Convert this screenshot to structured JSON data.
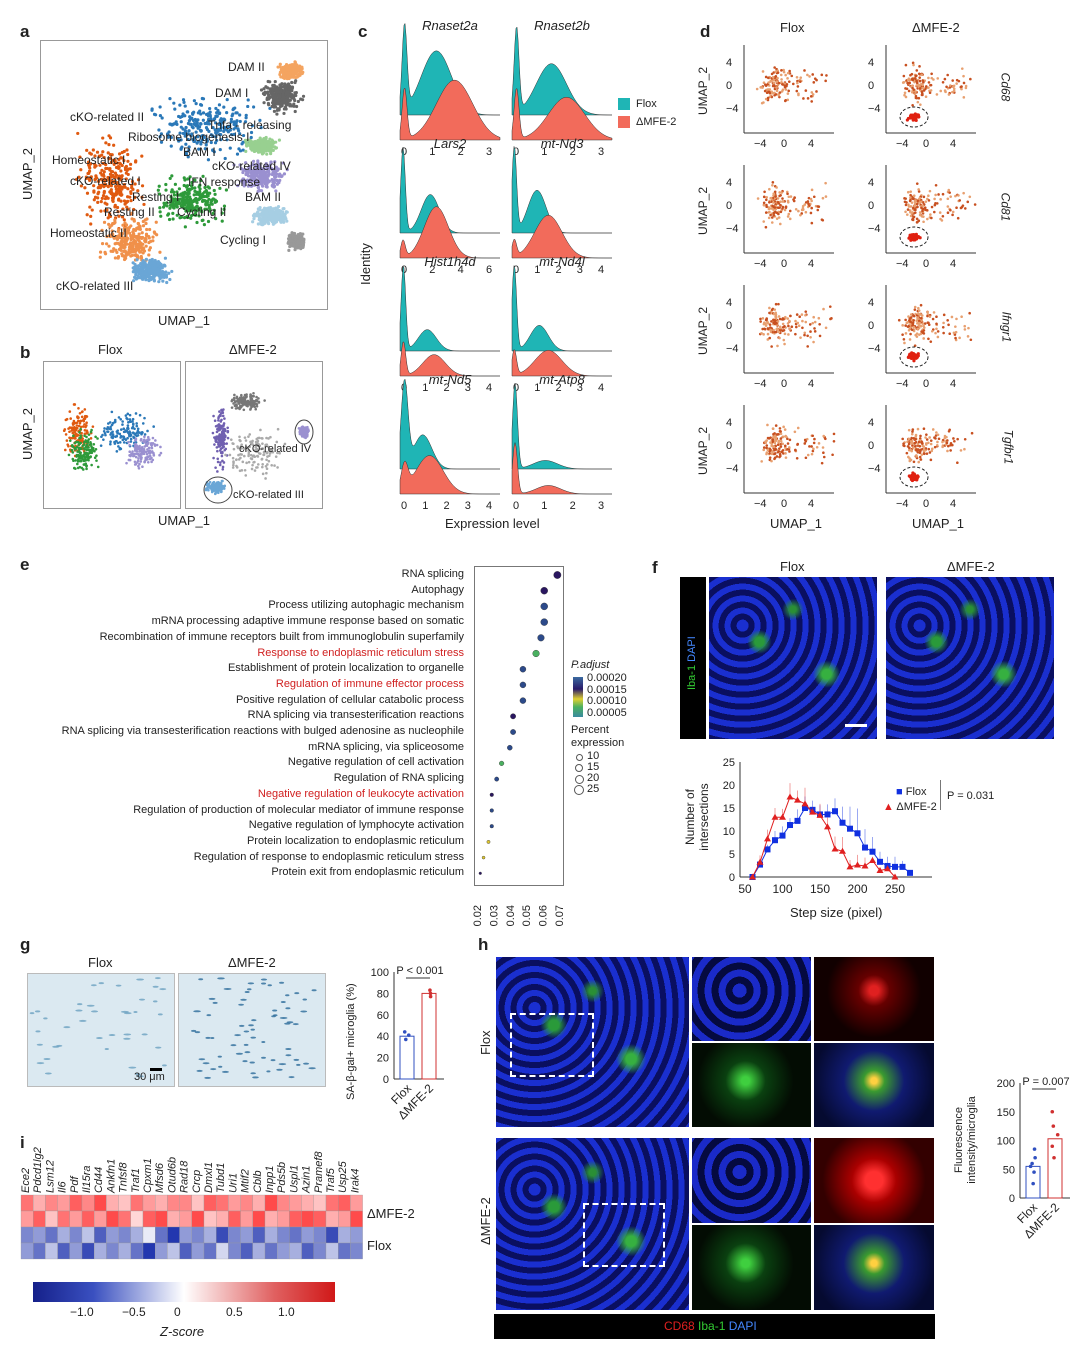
{
  "panels": {
    "a": "a",
    "b": "b",
    "c": "c",
    "d": "d",
    "e": "e",
    "f": "f",
    "g": "g",
    "h": "h",
    "i": "i"
  },
  "a": {
    "xlabel": "UMAP_1",
    "ylabel": "UMAP_2",
    "clusters": [
      "DAM II",
      "DAM I",
      "cKO-related II",
      "Tnfa - releasing",
      "Ribosome biogenesis I",
      "BAM I",
      "Homeostatic I",
      "cKO-related IV",
      "cKO-related I",
      "IFN response",
      "Resting I",
      "BAM II",
      "Resting II",
      "Cycling II",
      "Homeostatic II",
      "Cycling I",
      "cKO-related III"
    ]
  },
  "b": {
    "titles": [
      "Flox",
      "ΔMFE-2"
    ],
    "xlabel": "UMAP_1",
    "ylabel": "UMAP_2",
    "annotations": [
      "cKO-related IV",
      "cKO-related III"
    ]
  },
  "c": {
    "ylabel": "Identity",
    "xlabel": "Expression level",
    "legend": [
      "Flox",
      "ΔMFE-2"
    ],
    "colors": {
      "flox": "#1fb5b5",
      "mfe": "#f26b5b"
    },
    "genes": [
      {
        "name": "Rnaset2a",
        "ticks": [
          "0",
          "1",
          "2",
          "3"
        ],
        "flox": [
          [
            0.15,
            0.08,
            1
          ],
          [
            1.2,
            0.5,
            0.75
          ]
        ],
        "mfe": [
          [
            0.15,
            0.08,
            0.6
          ],
          [
            1.8,
            0.6,
            0.7
          ]
        ]
      },
      {
        "name": "Rnaset2b",
        "ticks": [
          "0",
          "1",
          "2",
          "3"
        ],
        "flox": [
          [
            0.15,
            0.08,
            1
          ],
          [
            1.3,
            0.5,
            0.6
          ]
        ],
        "mfe": [
          [
            0.15,
            0.08,
            0.6
          ],
          [
            1.8,
            0.6,
            0.5
          ]
        ]
      },
      {
        "name": "Lars2",
        "ticks": [
          "0",
          "2",
          "4",
          "6"
        ],
        "flox": [
          [
            0.2,
            0.15,
            1
          ],
          [
            2,
            0.6,
            0.45
          ]
        ],
        "mfe": [
          [
            0.2,
            0.15,
            0.2
          ],
          [
            2.4,
            0.8,
            0.6
          ]
        ]
      },
      {
        "name": "mt-Nd3",
        "ticks": [
          "0",
          "1",
          "2",
          "3",
          "4"
        ],
        "flox": [
          [
            0.1,
            0.1,
            1
          ],
          [
            1.1,
            0.4,
            0.5
          ]
        ],
        "mfe": [
          [
            0.1,
            0.1,
            0.2
          ],
          [
            1.6,
            0.6,
            0.5
          ]
        ]
      },
      {
        "name": "Hist1h4d",
        "ticks": [
          "0",
          "1",
          "2",
          "3",
          "4"
        ],
        "flox": [
          [
            0.15,
            0.1,
            1
          ],
          [
            1.2,
            0.4,
            0.25
          ]
        ],
        "mfe": [
          [
            0.15,
            0.1,
            0.4
          ],
          [
            1.5,
            0.5,
            0.25
          ]
        ]
      },
      {
        "name": "mt-Nd4l",
        "ticks": [
          "0",
          "1",
          "2",
          "3",
          "4"
        ],
        "flox": [
          [
            0.1,
            0.1,
            1
          ],
          [
            1.2,
            0.4,
            0.3
          ]
        ],
        "mfe": [
          [
            0.1,
            0.1,
            0.3
          ],
          [
            1.6,
            0.6,
            0.3
          ]
        ]
      },
      {
        "name": "mt-Nd5",
        "ticks": [
          "0",
          "1",
          "2",
          "3",
          "4"
        ],
        "flox": [
          [
            0.2,
            0.15,
            1
          ],
          [
            1.0,
            0.4,
            0.4
          ]
        ],
        "mfe": [
          [
            0.2,
            0.15,
            0.3
          ],
          [
            1.3,
            0.6,
            0.45
          ]
        ]
      },
      {
        "name": "mt-Atp8",
        "ticks": [
          "0",
          "1",
          "2",
          "3"
        ],
        "flox": [
          [
            0.1,
            0.08,
            1
          ],
          [
            1.1,
            0.4,
            0.1
          ]
        ],
        "mfe": [
          [
            0.1,
            0.08,
            0.6
          ],
          [
            1.2,
            0.4,
            0.1
          ]
        ]
      }
    ]
  },
  "d": {
    "titles": [
      "Flox",
      "ΔMFE-2"
    ],
    "genes": [
      "Cd68",
      "Cd81",
      "Ifngr1",
      "Tgfbr1"
    ],
    "xlabel": "UMAP_1",
    "ylabel": "UMAP_2",
    "yticks": [
      "4",
      "0",
      "−4"
    ],
    "xticks": [
      "−4",
      "0",
      "4"
    ]
  },
  "chart_data": [
    {
      "type": "scatter",
      "title": "GO enrichment",
      "terms": [
        "RNA splicing",
        "Autophagy",
        "Process utilizing autophagic mechanism",
        "mRNA processing adaptive immune response based on somatic",
        "Recombination of immune receptors built from immunoglobulin superfamily",
        "Response to endoplasmic reticulum stress",
        "Establishment of protein localization to organelle",
        "Regulation of immune effector process",
        "Positive regulation of cellular catabolic process",
        "RNA splicing via transesterification reactions",
        "RNA splicing via transesterification reactions with bulged adenosine as nucleophile",
        "mRNA splicing, via spliceosome",
        "Negative regulation of cell activation",
        "Regulation of RNA splicing",
        "Negative regulation of leukocyte activation",
        "Regulation of production of molecular mediator of immune response",
        "Negative regulation of lymphocyte activation",
        "Protein localization to endoplasmic reticulum",
        "Regulation of response to endoplasmic reticulum stress",
        "Protein exit from endoplasmic reticulum"
      ],
      "highlighted": [
        5,
        7,
        14
      ],
      "x": [
        0.069,
        0.061,
        0.061,
        0.061,
        0.059,
        0.056,
        0.048,
        0.048,
        0.048,
        0.042,
        0.042,
        0.04,
        0.035,
        0.032,
        0.029,
        0.029,
        0.029,
        0.027,
        0.024,
        0.022
      ],
      "padj": [
        0.00015,
        0.00015,
        0.00018,
        0.00018,
        0.0002,
        0.0001,
        0.00018,
        0.00018,
        0.00018,
        0.00015,
        0.00018,
        0.00018,
        0.0001,
        0.00018,
        0.00015,
        0.00018,
        0.00018,
        0.00012,
        0.00012,
        0.00016
      ],
      "size": [
        22,
        21,
        21,
        21,
        20,
        20,
        18,
        18,
        18,
        16,
        16,
        15,
        14,
        13,
        11,
        11,
        11,
        10,
        9,
        8
      ],
      "xticks": [
        "0.02",
        "0.03",
        "0.04",
        "0.05",
        "0.06",
        "0.07"
      ],
      "xlim": [
        0.02,
        0.07
      ],
      "legend_title": "P.adjust",
      "legend_values": [
        "0.00020",
        "0.00015",
        "0.00010",
        "0.00005"
      ],
      "size_title": "Percent expression",
      "size_values": [
        "10",
        "15",
        "20",
        "25"
      ]
    },
    {
      "type": "line",
      "xlabel": "Step size (pixel)",
      "ylabel": "Number of intersections",
      "ylim": [
        0,
        25
      ],
      "xlim": [
        50,
        300
      ],
      "xticks": [
        "50",
        "100",
        "150",
        "200",
        "250"
      ],
      "yticks": [
        "0",
        "5",
        "10",
        "15",
        "20",
        "25"
      ],
      "pvalue": "P = 0.031",
      "series": [
        {
          "name": "Flox",
          "color": "#1030e0",
          "x": [
            60,
            70,
            80,
            90,
            100,
            110,
            120,
            130,
            140,
            150,
            160,
            170,
            180,
            190,
            200,
            210,
            220,
            230,
            240,
            250,
            260,
            270
          ],
          "y": [
            0,
            2.7,
            6,
            8,
            9,
            11.3,
            12.2,
            15,
            14.6,
            13.6,
            13.6,
            14.3,
            11.8,
            10.5,
            9.5,
            6.4,
            5.5,
            3.3,
            2.4,
            2.2,
            2.2,
            0.9
          ],
          "err": [
            0,
            1,
            1,
            2,
            2,
            1.5,
            2.5,
            2.5,
            2,
            2,
            2.2,
            2.8,
            3.5,
            4.8,
            5.4,
            4,
            3.2,
            2.2,
            2,
            2.2,
            1.3,
            0
          ]
        },
        {
          "name": "ΔMFE-2",
          "color": "#e02020",
          "x": [
            60,
            70,
            80,
            90,
            100,
            110,
            120,
            130,
            140,
            150,
            160,
            170,
            180,
            190,
            200,
            210,
            220,
            230,
            240,
            250
          ],
          "y": [
            0,
            3.2,
            8.3,
            13,
            13,
            17.4,
            16.7,
            15.9,
            14.1,
            13.4,
            10.9,
            6.1,
            5.6,
            2.2,
            2.6,
            2.4,
            3.6,
            1.4,
            1.8,
            0
          ],
          "err": [
            0,
            1.5,
            2,
            2,
            1.8,
            3,
            2.1,
            3.5,
            1,
            2.5,
            2,
            2.7,
            3.1,
            1.5,
            2.2,
            1.8,
            0.8,
            0.6,
            0.5,
            0
          ]
        }
      ]
    },
    {
      "type": "bar",
      "ylabel": "SA-β-gal+ microglia (%)",
      "categories": [
        "Flox",
        "ΔMFE-2"
      ],
      "values": [
        40,
        80
      ],
      "ylim": [
        0,
        100
      ],
      "yticks": [
        "0",
        "20",
        "40",
        "60",
        "80",
        "100"
      ],
      "pvalue": "P < 0.001",
      "points": [
        [
          37,
          41,
          44
        ],
        [
          77,
          80,
          83
        ]
      ]
    },
    {
      "type": "bar",
      "ylabel": "Fluorescence intensity/microglia",
      "categories": [
        "Flox",
        "ΔMFE-2"
      ],
      "values": [
        55,
        103
      ],
      "ylim": [
        0,
        200
      ],
      "yticks": [
        "0",
        "50",
        "100",
        "150",
        "200"
      ],
      "pvalue": "P = 0.007",
      "points": [
        [
          25,
          45,
          55,
          60,
          70,
          85
        ],
        [
          70,
          90,
          110,
          125,
          150
        ]
      ]
    },
    {
      "type": "heatmap",
      "genes": [
        "Ece2",
        "Pdcd1lg2",
        "Lsm12",
        "Il6",
        "Pdf",
        "Il15ra",
        "Cd44",
        "Ankfn1",
        "Tnfsf8",
        "Traf1",
        "Cpxm1",
        "Mfsd6",
        "Otud6b",
        "Rad18",
        "Crcp",
        "Dmxl1",
        "Tubd1",
        "Uri1",
        "Mtif2",
        "Cblb",
        "Inpp1",
        "Pds5b",
        "Uspl1",
        "Azin1",
        "Pramef8",
        "Traf5",
        "Usp25",
        "Irak4"
      ],
      "rows": [
        "ΔMFE-2",
        "ΔMFE-2",
        "Flox",
        "Flox"
      ],
      "row_labels": [
        "ΔMFE-2",
        "Flox"
      ],
      "values": [
        [
          0.7,
          0.4,
          0.6,
          0.5,
          0.8,
          0.6,
          0.9,
          0.4,
          0.3,
          0.7,
          0.5,
          0.4,
          0.6,
          0.6,
          0.3,
          0.8,
          0.7,
          0.5,
          0.6,
          0.4,
          0.9,
          0.6,
          0.5,
          0.4,
          0.3,
          0.7,
          0.8,
          0.5
        ],
        [
          0.5,
          0.8,
          0.3,
          0.7,
          0.5,
          0.8,
          0.5,
          0.9,
          0.7,
          0.2,
          0.8,
          0.9,
          0.4,
          0.5,
          0.9,
          0.3,
          0.4,
          0.8,
          0.5,
          0.9,
          0.4,
          0.5,
          0.8,
          0.9,
          0.8,
          0.4,
          0.5,
          0.9
        ],
        [
          -0.6,
          -0.5,
          -0.7,
          -0.4,
          -0.6,
          -0.3,
          -0.8,
          -0.5,
          -0.6,
          -0.4,
          -0.1,
          -0.7,
          -1.0,
          -0.5,
          -0.6,
          -0.4,
          -0.9,
          -0.6,
          -0.5,
          -0.8,
          -0.4,
          -0.6,
          -0.7,
          -0.5,
          -0.6,
          -0.9,
          -0.4,
          -0.5
        ],
        [
          -0.5,
          -0.7,
          -0.3,
          -0.8,
          -0.5,
          -0.9,
          -0.4,
          -0.6,
          -0.4,
          -0.7,
          -1.0,
          -0.5,
          -0.3,
          -0.8,
          -0.5,
          -0.7,
          -0.2,
          -0.6,
          -0.8,
          -0.4,
          -0.7,
          -0.5,
          -0.4,
          -0.8,
          -0.6,
          -0.3,
          -0.7,
          -0.6
        ]
      ],
      "colorbar_ticks": [
        "−1.0",
        "−0.5",
        "0",
        "0.5",
        "1.0"
      ],
      "colorbar_label": "Z-score"
    }
  ],
  "g": {
    "titles": [
      "Flox",
      "ΔMFE-2"
    ],
    "scalebar": "30 μm"
  },
  "h": {
    "rows": [
      "Flox",
      "ΔMFE-2"
    ],
    "legend": {
      "cd68": "CD68",
      "iba1": "Iba-1",
      "dapi": "DAPI"
    }
  },
  "f": {
    "titles": [
      "Flox",
      "ΔMFE-2"
    ],
    "stain_iba1": "Iba-1",
    "stain_dapi": "DAPI"
  }
}
